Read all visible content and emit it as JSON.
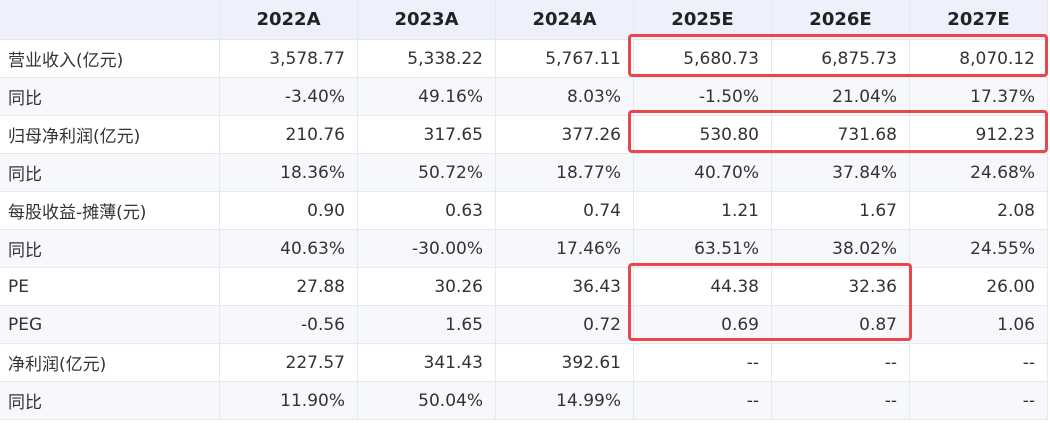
{
  "table": {
    "header": [
      "2022A",
      "2023A",
      "2024A",
      "2025E",
      "2026E",
      "2027E"
    ],
    "rows": [
      [
        "营业收入(亿元)",
        "3,578.77",
        "5,338.22",
        "5,767.11",
        "5,680.73",
        "6,875.73",
        "8,070.12"
      ],
      [
        "同比",
        "-3.40%",
        "49.16%",
        "8.03%",
        "-1.50%",
        "21.04%",
        "17.37%"
      ],
      [
        "归母净利润(亿元)",
        "210.76",
        "317.65",
        "377.26",
        "530.80",
        "731.68",
        "912.23"
      ],
      [
        "同比",
        "18.36%",
        "50.72%",
        "18.77%",
        "40.70%",
        "37.84%",
        "24.68%"
      ],
      [
        "每股收益-摊薄(元)",
        "0.90",
        "0.63",
        "0.74",
        "1.21",
        "1.67",
        "2.08"
      ],
      [
        "同比",
        "40.63%",
        "-30.00%",
        "17.46%",
        "63.51%",
        "38.02%",
        "24.55%"
      ],
      [
        "PE",
        "27.88",
        "30.26",
        "36.43",
        "44.38",
        "32.36",
        "26.00"
      ],
      [
        "PEG",
        "-0.56",
        "1.65",
        "0.72",
        "0.69",
        "0.87",
        "1.06"
      ],
      [
        "净利润(亿元)",
        "227.57",
        "341.43",
        "392.61",
        "--",
        "--",
        "--"
      ],
      [
        "同比",
        "11.90%",
        "50.04%",
        "14.99%",
        "--",
        "--",
        "--"
      ]
    ]
  }
}
